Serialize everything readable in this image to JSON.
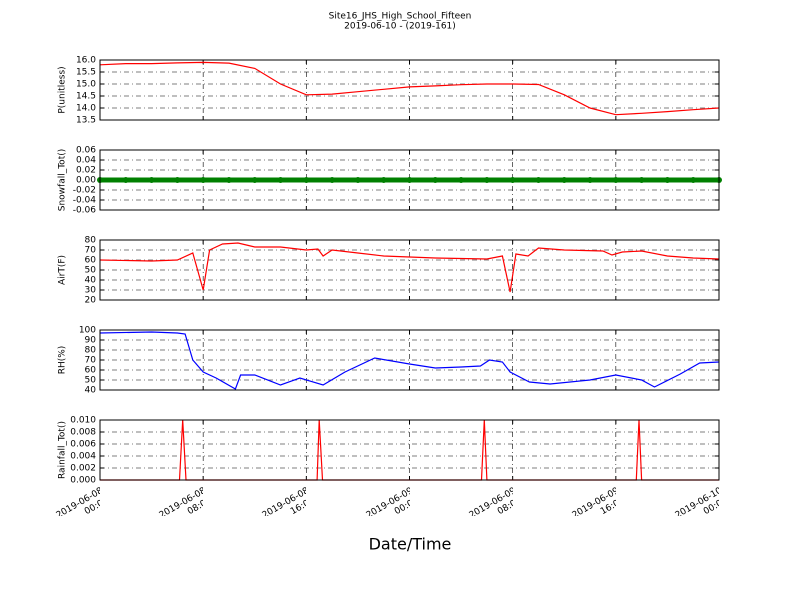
{
  "title": "Site16_JHS_High_School_Fifteen",
  "subtitle": "2019-06-10 - (2019-161)",
  "xlabel": "Date/Time",
  "chart_data": [
    {
      "type": "line",
      "ylabel": "P(unitless)",
      "color": "#ff0000",
      "x": [
        "2019-06-08 00:00",
        "2019-06-08 02:00",
        "2019-06-08 04:00",
        "2019-06-08 06:00",
        "2019-06-08 08:00",
        "2019-06-08 10:00",
        "2019-06-08 12:00",
        "2019-06-08 14:00",
        "2019-06-08 16:00",
        "2019-06-08 18:00",
        "2019-06-08 20:00",
        "2019-06-08 22:00",
        "2019-06-09 00:00",
        "2019-06-09 02:00",
        "2019-06-09 04:00",
        "2019-06-09 06:00",
        "2019-06-09 08:00",
        "2019-06-09 10:00",
        "2019-06-09 12:00",
        "2019-06-09 14:00",
        "2019-06-09 16:00",
        "2019-06-09 18:00",
        "2019-06-09 20:00",
        "2019-06-09 22:00",
        "2019-06-10 00:00"
      ],
      "values": [
        15.8,
        15.85,
        15.85,
        15.88,
        15.9,
        15.87,
        15.65,
        15.0,
        14.55,
        14.58,
        14.68,
        14.78,
        14.88,
        14.92,
        14.97,
        15.0,
        15.0,
        14.98,
        14.55,
        14.0,
        13.72,
        13.78,
        13.85,
        13.93,
        14.0
      ],
      "xlim": [
        "2019-06-08 00:00",
        "2019-06-10 00:00"
      ],
      "xticks": [
        "2019-06-08 00:00",
        "2019-06-08 08:00",
        "2019-06-08 16:00",
        "2019-06-09 00:00",
        "2019-06-09 08:00",
        "2019-06-09 16:00",
        "2019-06-10 00:00"
      ],
      "ylim": [
        13.5,
        16
      ],
      "yticks": [
        13.5,
        {
          "value": 14,
          "label": "14.0"
        },
        14.5,
        {
          "value": 15,
          "label": "15.0"
        },
        15.5,
        {
          "value": 16,
          "label": "16.0"
        }
      ],
      "grid": true
    },
    {
      "type": "line",
      "ylabel": "Snowfall_Tot()",
      "color": "#008000",
      "markers": true,
      "x": [
        "2019-06-08 00:00",
        "2019-06-08 02:00",
        "2019-06-08 04:00",
        "2019-06-08 06:00",
        "2019-06-08 08:00",
        "2019-06-08 10:00",
        "2019-06-08 12:00",
        "2019-06-08 14:00",
        "2019-06-08 16:00",
        "2019-06-08 18:00",
        "2019-06-08 20:00",
        "2019-06-08 22:00",
        "2019-06-09 00:00",
        "2019-06-09 02:00",
        "2019-06-09 04:00",
        "2019-06-09 06:00",
        "2019-06-09 08:00",
        "2019-06-09 10:00",
        "2019-06-09 12:00",
        "2019-06-09 14:00",
        "2019-06-09 16:00",
        "2019-06-09 18:00",
        "2019-06-09 20:00",
        "2019-06-09 22:00",
        "2019-06-10 00:00"
      ],
      "values": [
        0,
        0,
        0,
        0,
        0,
        0,
        0,
        0,
        0,
        0,
        0,
        0,
        0,
        0,
        0,
        0,
        0,
        0,
        0,
        0,
        0,
        0,
        0,
        0,
        0
      ],
      "xlim": [
        "2019-06-08 00:00",
        "2019-06-10 00:00"
      ],
      "xticks": [
        "2019-06-08 00:00",
        "2019-06-08 08:00",
        "2019-06-08 16:00",
        "2019-06-09 00:00",
        "2019-06-09 08:00",
        "2019-06-09 16:00",
        "2019-06-10 00:00"
      ],
      "ylim": [
        -0.06,
        0.06
      ],
      "yticks": [
        {
          "value": -0.06,
          "label": "-0.06"
        },
        {
          "value": -0.04,
          "label": "-0.04"
        },
        {
          "value": -0.02,
          "label": "-0.02"
        },
        {
          "value": 0,
          "label": "0.00"
        },
        {
          "value": 0.02,
          "label": "0.02"
        },
        {
          "value": 0.04,
          "label": "0.04"
        },
        {
          "value": 0.06,
          "label": "0.06"
        }
      ],
      "grid": true
    },
    {
      "type": "line",
      "ylabel": "AirT(F)",
      "color": "#ff0000",
      "x": [
        "2019-06-08 00:00",
        "2019-06-08 04:00",
        "2019-06-08 06:00",
        "2019-06-08 07:12",
        "2019-06-08 08:00",
        "2019-06-08 08:30",
        "2019-06-08 09:30",
        "2019-06-08 10:42",
        "2019-06-08 12:00",
        "2019-06-08 14:00",
        "2019-06-08 16:00",
        "2019-06-08 16:54",
        "2019-06-08 17:18",
        "2019-06-08 18:00",
        "2019-06-08 20:00",
        "2019-06-08 22:00",
        "2019-06-09 02:00",
        "2019-06-09 06:00",
        "2019-06-09 07:12",
        "2019-06-09 07:48",
        "2019-06-09 08:15",
        "2019-06-09 09:12",
        "2019-06-09 10:00",
        "2019-06-09 12:00",
        "2019-06-09 15:00",
        "2019-06-09 15:42",
        "2019-06-09 16:30",
        "2019-06-09 18:00",
        "2019-06-09 20:00",
        "2019-06-09 22:00",
        "2019-06-10 00:00"
      ],
      "values": [
        60,
        59,
        60,
        67,
        30,
        70,
        76,
        77,
        73,
        73,
        70,
        71,
        64,
        70,
        67,
        64,
        62,
        61,
        64,
        28,
        66,
        64,
        72,
        70,
        69,
        65,
        68,
        69,
        64,
        62,
        61
      ],
      "xlim": [
        "2019-06-08 00:00",
        "2019-06-10 00:00"
      ],
      "xticks": [
        "2019-06-08 00:00",
        "2019-06-08 08:00",
        "2019-06-08 16:00",
        "2019-06-09 00:00",
        "2019-06-09 08:00",
        "2019-06-09 16:00",
        "2019-06-10 00:00"
      ],
      "ylim": [
        20,
        80
      ],
      "yticks": [
        20,
        30,
        40,
        50,
        60,
        70,
        80
      ],
      "grid": true
    },
    {
      "type": "line",
      "ylabel": "RH(%)",
      "color": "#0000ff",
      "x": [
        "2019-06-08 00:00",
        "2019-06-08 04:00",
        "2019-06-08 06:00",
        "2019-06-08 06:36",
        "2019-06-08 07:12",
        "2019-06-08 08:00",
        "2019-06-08 09:00",
        "2019-06-08 10:30",
        "2019-06-08 10:54",
        "2019-06-08 12:00",
        "2019-06-08 14:00",
        "2019-06-08 15:30",
        "2019-06-08 17:18",
        "2019-06-08 19:00",
        "2019-06-08 21:18",
        "2019-06-09 00:00",
        "2019-06-09 02:00",
        "2019-06-09 04:00",
        "2019-06-09 05:30",
        "2019-06-09 06:12",
        "2019-06-09 07:12",
        "2019-06-09 07:48",
        "2019-06-09 09:18",
        "2019-06-09 10:54",
        "2019-06-09 14:00",
        "2019-06-09 16:00",
        "2019-06-09 18:00",
        "2019-06-09 19:00",
        "2019-06-09 21:00",
        "2019-06-09 22:30",
        "2019-06-10 00:00"
      ],
      "values": [
        97,
        98,
        97,
        96,
        70,
        58,
        52,
        41,
        55,
        55,
        45,
        52,
        45,
        58,
        72,
        66,
        62,
        63,
        64,
        70,
        68,
        58,
        48,
        46,
        50,
        55,
        50,
        43,
        56,
        67,
        68
      ],
      "xlim": [
        "2019-06-08 00:00",
        "2019-06-10 00:00"
      ],
      "xticks": [
        "2019-06-08 00:00",
        "2019-06-08 08:00",
        "2019-06-08 16:00",
        "2019-06-09 00:00",
        "2019-06-09 08:00",
        "2019-06-09 16:00",
        "2019-06-10 00:00"
      ],
      "ylim": [
        40,
        100
      ],
      "yticks": [
        40,
        50,
        60,
        70,
        80,
        90,
        100
      ],
      "grid": true
    },
    {
      "type": "line",
      "ylabel": "Rainfall_Tot()",
      "color": "#ff0000",
      "x": [
        "2019-06-08 00:00",
        "2019-06-08 06:10",
        "2019-06-08 06:25",
        "2019-06-08 06:40",
        "2019-06-08 16:50",
        "2019-06-08 17:00",
        "2019-06-08 17:15",
        "2019-06-09 05:35",
        "2019-06-09 05:48",
        "2019-06-09 06:00",
        "2019-06-09 17:35",
        "2019-06-09 17:48",
        "2019-06-09 18:00",
        "2019-06-10 00:00"
      ],
      "values": [
        0,
        0,
        0.01,
        0,
        0,
        0.01,
        0,
        0,
        0.01,
        0,
        0,
        0.01,
        0,
        0
      ],
      "xlim": [
        "2019-06-08 00:00",
        "2019-06-10 00:00"
      ],
      "xticks": [
        {
          "value": "2019-06-08 00:00",
          "label": "2019-06-08\n00:00"
        },
        {
          "value": "2019-06-08 08:00",
          "label": "2019-06-08\n08:00"
        },
        {
          "value": "2019-06-08 16:00",
          "label": "2019-06-08\n16:00"
        },
        {
          "value": "2019-06-09 00:00",
          "label": "2019-06-09\n00:00"
        },
        {
          "value": "2019-06-09 08:00",
          "label": "2019-06-09\n08:00"
        },
        {
          "value": "2019-06-09 16:00",
          "label": "2019-06-09\n16:00"
        },
        {
          "value": "2019-06-10 00:00",
          "label": "2019-06-10\n00:00"
        }
      ],
      "ylim": [
        0,
        0.01
      ],
      "yticks": [
        {
          "value": 0,
          "label": "0.000"
        },
        {
          "value": 0.002,
          "label": "0.002"
        },
        {
          "value": 0.004,
          "label": "0.004"
        },
        {
          "value": 0.006,
          "label": "0.006"
        },
        {
          "value": 0.008,
          "label": "0.008"
        },
        {
          "value": 0.01,
          "label": "0.010"
        }
      ],
      "grid": true
    }
  ]
}
